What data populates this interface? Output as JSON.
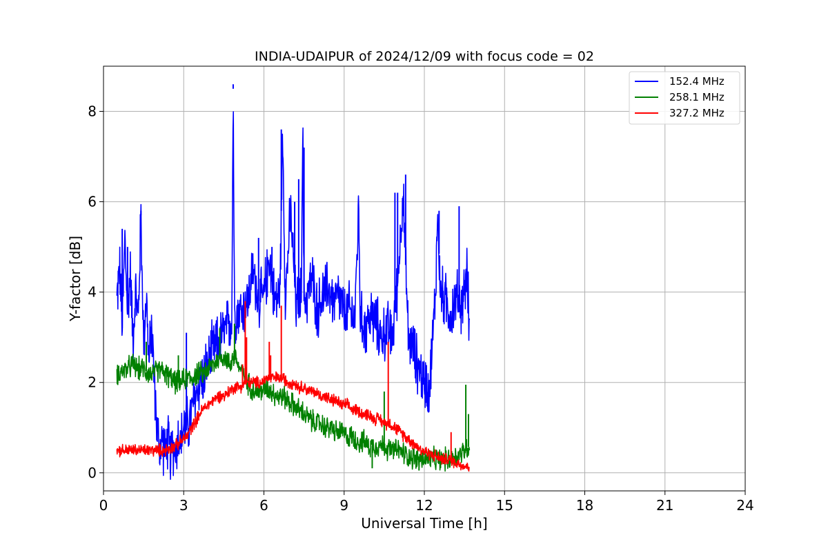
{
  "chart_data": {
    "type": "line",
    "title": "INDIA-UDAIPUR of 2024/12/09 with focus code = 02",
    "xlabel": "Universal Time [h]",
    "ylabel": "Y-factor [dB]",
    "xlim": [
      0,
      24
    ],
    "ylim": [
      -0.4,
      9.0
    ],
    "xticks": [
      0,
      3,
      6,
      9,
      12,
      15,
      18,
      21,
      24
    ],
    "yticks": [
      0,
      2,
      4,
      6,
      8
    ],
    "grid": true,
    "legend_position": "top-right",
    "series": [
      {
        "name": "152.4 MHz",
        "color": "#0000ff",
        "x": [
          0.5,
          0.6,
          0.7,
          0.8,
          0.9,
          1.0,
          1.1,
          1.2,
          1.3,
          1.4,
          1.5,
          1.6,
          1.7,
          1.8,
          1.9,
          2.0,
          2.1,
          2.2,
          2.3,
          2.4,
          2.5,
          2.6,
          2.7,
          2.8,
          2.9,
          3.0,
          3.2,
          3.4,
          3.6,
          3.8,
          4.0,
          4.2,
          4.4,
          4.6,
          4.8,
          4.85,
          4.9,
          5.0,
          5.2,
          5.4,
          5.6,
          5.8,
          6.0,
          6.2,
          6.4,
          6.6,
          6.7,
          6.8,
          7.0,
          7.2,
          7.4,
          7.45,
          7.5,
          7.6,
          7.8,
          8.0,
          8.2,
          8.4,
          8.6,
          8.8,
          9.0,
          9.2,
          9.4,
          9.55,
          9.6,
          9.8,
          10.0,
          10.2,
          10.4,
          10.6,
          10.8,
          11.0,
          11.2,
          11.4,
          11.6,
          11.8,
          12.0,
          12.2,
          12.4,
          12.5,
          12.6,
          12.8,
          13.0,
          13.2,
          13.4,
          13.6,
          13.7
        ],
        "y": [
          3.8,
          4.6,
          3.2,
          5.2,
          3.5,
          4.5,
          3.0,
          4.0,
          3.4,
          5.7,
          2.8,
          4.0,
          2.4,
          3.3,
          2.0,
          1.0,
          0.5,
          0.8,
          0.4,
          0.7,
          0.4,
          0.6,
          0.5,
          0.8,
          0.7,
          1.0,
          1.1,
          1.6,
          2.0,
          2.2,
          2.6,
          2.8,
          3.0,
          3.2,
          3.4,
          8.5,
          3.5,
          3.6,
          3.6,
          3.8,
          4.5,
          3.8,
          3.9,
          4.8,
          3.8,
          4.0,
          7.6,
          3.9,
          5.8,
          3.7,
          4.0,
          7.9,
          3.8,
          3.9,
          4.3,
          3.6,
          3.9,
          4.1,
          3.8,
          3.9,
          3.5,
          3.6,
          3.4,
          6.0,
          3.4,
          3.2,
          3.5,
          3.3,
          3.0,
          3.2,
          3.0,
          4.2,
          6.2,
          3.0,
          2.7,
          2.3,
          2.0,
          1.9,
          3.8,
          5.7,
          4.0,
          3.8,
          3.5,
          3.9,
          3.7,
          4.4,
          3.0
        ],
        "spikes": [
          {
            "x": 0.7,
            "y": 5.4
          },
          {
            "x": 0.9,
            "y": 5.0
          },
          {
            "x": 1.4,
            "y": 5.8
          },
          {
            "x": 2.5,
            "y": 0.0
          },
          {
            "x": 3.1,
            "y": 3.1
          },
          {
            "x": 4.85,
            "y": 8.6
          },
          {
            "x": 5.8,
            "y": 5.2
          },
          {
            "x": 6.3,
            "y": 5.0
          },
          {
            "x": 6.65,
            "y": 7.6
          },
          {
            "x": 7.15,
            "y": 6.0
          },
          {
            "x": 7.3,
            "y": 6.5
          },
          {
            "x": 7.45,
            "y": 7.9
          },
          {
            "x": 7.5,
            "y": 7.2
          },
          {
            "x": 9.55,
            "y": 6.0
          },
          {
            "x": 10.9,
            "y": 6.2
          },
          {
            "x": 11.0,
            "y": 6.2
          },
          {
            "x": 11.3,
            "y": 6.6
          },
          {
            "x": 12.55,
            "y": 5.8
          },
          {
            "x": 13.3,
            "y": 5.9
          },
          {
            "x": 2.1,
            "y": 0.2
          }
        ]
      },
      {
        "name": "258.1 MHz",
        "color": "#008000",
        "x": [
          0.5,
          0.7,
          0.9,
          1.1,
          1.3,
          1.5,
          1.7,
          1.9,
          2.1,
          2.3,
          2.5,
          2.7,
          2.9,
          3.1,
          3.3,
          3.5,
          3.7,
          3.9,
          4.1,
          4.3,
          4.5,
          4.7,
          4.9,
          5.1,
          5.3,
          5.5,
          5.7,
          5.9,
          6.1,
          6.3,
          6.5,
          6.7,
          6.9,
          7.1,
          7.3,
          7.5,
          7.7,
          7.9,
          8.1,
          8.3,
          8.5,
          8.7,
          8.9,
          9.1,
          9.3,
          9.5,
          9.7,
          9.9,
          10.1,
          10.3,
          10.5,
          10.7,
          10.9,
          11.1,
          11.3,
          11.5,
          11.7,
          11.9,
          12.1,
          12.3,
          12.5,
          12.7,
          12.9,
          13.1,
          13.3,
          13.5,
          13.7
        ],
        "y": [
          2.2,
          2.25,
          2.3,
          2.4,
          2.3,
          2.3,
          2.2,
          2.2,
          2.3,
          2.2,
          2.1,
          2.0,
          2.0,
          2.1,
          2.1,
          2.2,
          2.2,
          2.3,
          2.4,
          2.5,
          2.6,
          2.4,
          2.6,
          2.3,
          2.1,
          1.9,
          1.8,
          1.8,
          1.9,
          1.8,
          1.7,
          1.7,
          1.6,
          1.5,
          1.4,
          1.3,
          1.2,
          1.1,
          1.1,
          1.0,
          1.0,
          0.9,
          0.9,
          0.8,
          0.8,
          0.7,
          0.7,
          0.6,
          0.6,
          0.6,
          0.6,
          0.5,
          0.5,
          0.5,
          0.4,
          0.35,
          0.3,
          0.3,
          0.3,
          0.3,
          0.3,
          0.3,
          0.3,
          0.35,
          0.4,
          0.5,
          0.6
        ],
        "spikes": [
          {
            "x": 1.6,
            "y": 2.9
          },
          {
            "x": 2.8,
            "y": 2.6
          },
          {
            "x": 4.35,
            "y": 3.2
          },
          {
            "x": 4.9,
            "y": 3.3
          },
          {
            "x": 10.5,
            "y": 1.8
          },
          {
            "x": 13.55,
            "y": 1.95
          },
          {
            "x": 13.65,
            "y": 1.3
          },
          {
            "x": 10.05,
            "y": 0.1
          },
          {
            "x": 11.8,
            "y": 0.05
          }
        ]
      },
      {
        "name": "327.2 MHz",
        "color": "#ff0000",
        "x": [
          0.5,
          0.7,
          0.9,
          1.1,
          1.3,
          1.5,
          1.7,
          1.9,
          2.1,
          2.3,
          2.5,
          2.7,
          2.9,
          3.1,
          3.3,
          3.5,
          3.7,
          3.9,
          4.1,
          4.3,
          4.5,
          4.7,
          4.9,
          5.1,
          5.3,
          5.5,
          5.7,
          5.9,
          6.1,
          6.3,
          6.5,
          6.7,
          6.9,
          7.1,
          7.3,
          7.5,
          7.7,
          7.9,
          8.1,
          8.3,
          8.5,
          8.7,
          8.9,
          9.1,
          9.3,
          9.5,
          9.7,
          9.9,
          10.1,
          10.3,
          10.5,
          10.7,
          10.9,
          11.1,
          11.3,
          11.5,
          11.7,
          11.9,
          12.1,
          12.3,
          12.5,
          12.7,
          12.9,
          13.1,
          13.3,
          13.5,
          13.7
        ],
        "y": [
          0.5,
          0.5,
          0.5,
          0.5,
          0.5,
          0.5,
          0.5,
          0.5,
          0.5,
          0.5,
          0.55,
          0.6,
          0.7,
          0.8,
          1.0,
          1.2,
          1.4,
          1.5,
          1.6,
          1.7,
          1.7,
          1.8,
          1.9,
          1.9,
          2.0,
          2.0,
          2.0,
          2.0,
          2.1,
          2.1,
          2.1,
          2.1,
          2.0,
          2.0,
          1.9,
          1.9,
          1.8,
          1.8,
          1.7,
          1.7,
          1.6,
          1.6,
          1.5,
          1.5,
          1.4,
          1.4,
          1.3,
          1.3,
          1.2,
          1.2,
          1.1,
          1.1,
          1.0,
          0.9,
          0.8,
          0.7,
          0.6,
          0.5,
          0.45,
          0.4,
          0.35,
          0.3,
          0.3,
          0.25,
          0.2,
          0.15,
          0.15
        ],
        "spikes": [
          {
            "x": 5.3,
            "y": 3.8
          },
          {
            "x": 5.35,
            "y": 3.0
          },
          {
            "x": 5.2,
            "y": 2.4
          },
          {
            "x": 6.2,
            "y": 2.9
          },
          {
            "x": 6.25,
            "y": 2.6
          },
          {
            "x": 6.65,
            "y": 3.7
          },
          {
            "x": 10.65,
            "y": 2.9
          },
          {
            "x": 13.0,
            "y": 0.9
          }
        ]
      }
    ]
  }
}
